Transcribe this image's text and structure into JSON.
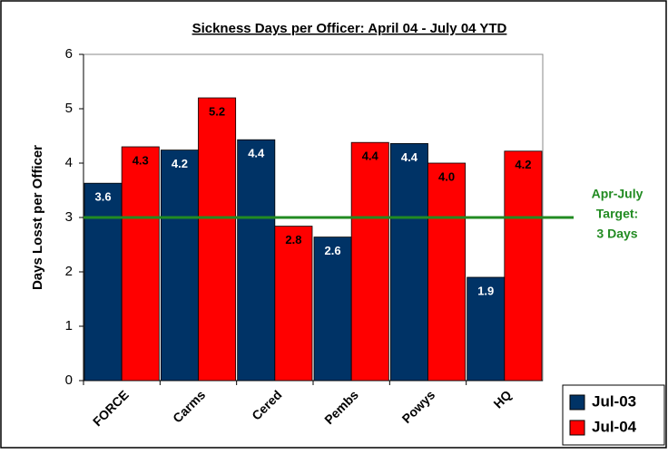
{
  "chart_data": {
    "type": "bar",
    "title": "Sickness Days per Officer: April 04 - July 04 YTD",
    "y_axis_label": "Days Losst per Officer",
    "categories": [
      "FORCE",
      "Carms",
      "Cered",
      "Pembs",
      "Powys",
      "HQ"
    ],
    "series": [
      {
        "name": "Jul-03",
        "color": "#003366",
        "values": [
          3.63,
          4.24,
          4.43,
          2.64,
          4.36,
          1.9
        ],
        "value_labels": [
          "3.6",
          "4.2",
          "4.4",
          "2.6",
          "4.4",
          "1.9"
        ]
      },
      {
        "name": "Jul-04",
        "color": "#ff0000",
        "values": [
          4.3,
          5.2,
          2.84,
          4.38,
          4.0,
          4.22
        ],
        "value_labels": [
          "4.3",
          "5.2",
          "2.8",
          "4.4",
          "4.0",
          "4.2"
        ]
      }
    ],
    "target": 3,
    "target_color": "#228b22",
    "target_annotation": [
      "Apr-July",
      "Target:",
      "3 Days"
    ],
    "ylim": [
      0,
      6
    ],
    "yticks": [
      0,
      1,
      2,
      3,
      4,
      5,
      6
    ],
    "grid": false,
    "legend": "bottom-right"
  }
}
